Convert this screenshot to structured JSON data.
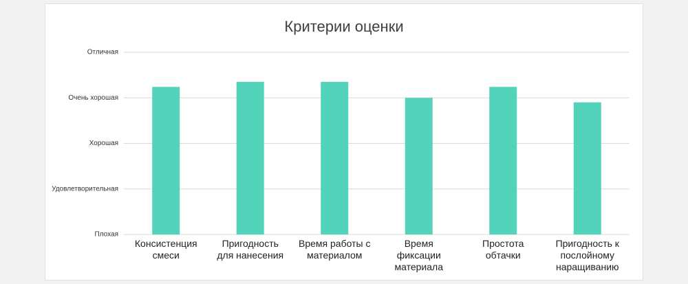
{
  "chart_data": {
    "type": "bar",
    "title": "Критерии оценки",
    "categories": [
      "Консистенция смеси",
      "Пригодность для нанесения",
      "Время работы с материалом",
      "Время фиксации материала",
      "Простота обтачки",
      "Пригодность к послойному наращиванию"
    ],
    "values": [
      4.24,
      4.35,
      4.35,
      4.0,
      4.24,
      3.9
    ],
    "color": "#53d3ba",
    "ylim": [
      1,
      5
    ],
    "yticks": [
      {
        "value": 1,
        "label": "Плохая"
      },
      {
        "value": 2,
        "label": "Удовлетворительная"
      },
      {
        "value": 3,
        "label": "Хорошая"
      },
      {
        "value": 4,
        "label": "Очень хорошая"
      },
      {
        "value": 5,
        "label": "Отличная"
      }
    ],
    "grid": true
  }
}
